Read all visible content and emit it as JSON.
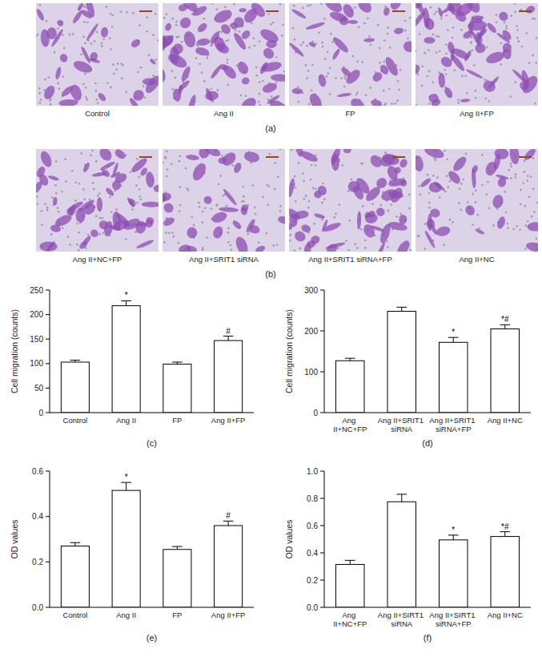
{
  "image_panels": [
    {
      "panel_label": "(a)",
      "captions": [
        "Control",
        "Ang II",
        "FP",
        "Ang II+FP"
      ]
    },
    {
      "panel_label": "(b)",
      "captions": [
        "Ang II+NC+FP",
        "Ang II+SRIT1 siRNA",
        "Ang II+SRIT1 siRNA+FP",
        "Ang II+NC"
      ]
    }
  ],
  "chart_data": [
    {
      "type": "bar",
      "panel_label": "(c)",
      "y_label": "Cell migration (counts)",
      "categories": [
        "Control",
        "Ang II",
        "FP",
        "Ang II+FP"
      ],
      "values": [
        103,
        218,
        99,
        147
      ],
      "errors": [
        4,
        10,
        4,
        9
      ],
      "annotations": [
        null,
        "*",
        null,
        "#"
      ],
      "color": "#ffffff",
      "ylim": [
        0,
        250
      ],
      "yticks": [
        0,
        50,
        100,
        150,
        200,
        250
      ],
      "grid": false
    },
    {
      "type": "bar",
      "panel_label": "(d)",
      "y_label": "Cell migration (counts)",
      "categories": [
        "Ang II+NC+FP",
        "Ang II+SRIT1 siRNA",
        "Ang II+SRIT1 siRNA+FP",
        "Ang II+NC"
      ],
      "values": [
        127,
        248,
        172,
        205
      ],
      "errors": [
        6,
        10,
        12,
        10
      ],
      "annotations": [
        null,
        null,
        "*",
        "*#"
      ],
      "color": "#ffffff",
      "ylim": [
        0,
        300
      ],
      "yticks": [
        0,
        100,
        200,
        300
      ],
      "grid": false
    },
    {
      "type": "bar",
      "panel_label": "(e)",
      "y_label": "OD values",
      "categories": [
        "Control",
        "Ang II",
        "FP",
        "Ang II+FP"
      ],
      "values": [
        0.27,
        0.515,
        0.255,
        0.36
      ],
      "errors": [
        0.015,
        0.035,
        0.013,
        0.02
      ],
      "annotations": [
        null,
        "*",
        null,
        "#"
      ],
      "color": "#ffffff",
      "ylim": [
        0,
        0.6
      ],
      "yticks": [
        {
          "value": 0,
          "label": "0.0"
        },
        0.2,
        0.4,
        0.6
      ],
      "grid": false
    },
    {
      "type": "bar",
      "panel_label": "(f)",
      "y_label": "OD values",
      "categories": [
        "Ang II+NC+FP",
        "Ang II+SIRT1 siRNA",
        "Ang II+SIRT1 siRNA+FP",
        "Ang II+NC"
      ],
      "values": [
        0.315,
        0.775,
        0.495,
        0.52
      ],
      "errors": [
        0.03,
        0.055,
        0.035,
        0.035
      ],
      "annotations": [
        null,
        null,
        "*",
        "*#"
      ],
      "color": "#ffffff",
      "ylim": [
        0,
        1.0
      ],
      "yticks": [
        {
          "value": 0,
          "label": "0.0"
        },
        0.2,
        0.4,
        0.6,
        0.8,
        {
          "value": 1.0,
          "label": "1.0"
        }
      ],
      "grid": false
    }
  ]
}
